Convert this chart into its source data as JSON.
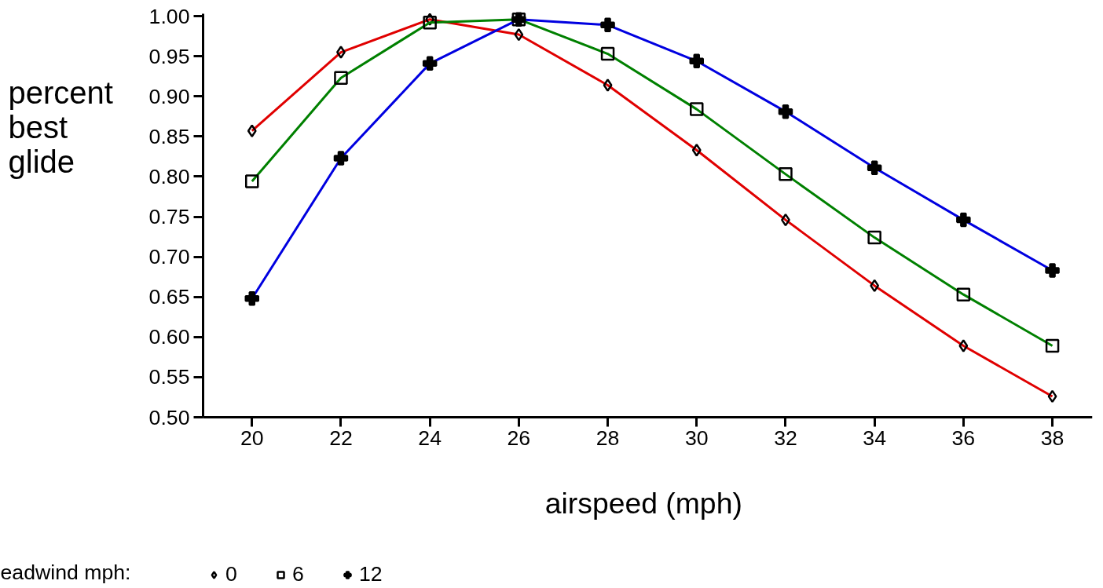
{
  "chart_data": {
    "type": "line",
    "xlabel": "airspeed  (mph)",
    "ylabel": "percent\nbest\nglide",
    "legend_title": "eadwind mph:",
    "x": [
      20,
      22,
      24,
      26,
      28,
      30,
      32,
      34,
      36,
      38
    ],
    "series": [
      {
        "name": "0",
        "color": "#e00000",
        "marker": "diamond",
        "values": [
          0.857,
          0.955,
          0.996,
          0.977,
          0.914,
          0.833,
          0.746,
          0.664,
          0.589,
          0.526
        ]
      },
      {
        "name": "6",
        "color": "#008000",
        "marker": "square",
        "values": [
          0.794,
          0.923,
          0.992,
          0.996,
          0.953,
          0.884,
          0.803,
          0.724,
          0.653,
          0.589
        ]
      },
      {
        "name": "12",
        "color": "#0000e0",
        "marker": "cross",
        "values": [
          0.648,
          0.823,
          0.941,
          0.996,
          0.989,
          0.944,
          0.881,
          0.811,
          0.746,
          0.683
        ]
      }
    ],
    "xlim": [
      18.9,
      38.9
    ],
    "xticks": [
      20,
      22,
      24,
      26,
      28,
      30,
      32,
      34,
      36,
      38
    ],
    "ylim": [
      0.5,
      1.003
    ],
    "yticks": [
      {
        "value": 0.5,
        "label": "0.50"
      },
      {
        "value": 0.55,
        "label": "0.55"
      },
      {
        "value": 0.6,
        "label": "0.60"
      },
      {
        "value": 0.65,
        "label": "0.65"
      },
      {
        "value": 0.7,
        "label": "0.70"
      },
      {
        "value": 0.75,
        "label": "0.75"
      },
      {
        "value": 0.8,
        "label": "0.80"
      },
      {
        "value": 0.85,
        "label": "0.85"
      },
      {
        "value": 0.9,
        "label": "0.90"
      },
      {
        "value": 0.95,
        "label": "0.95"
      },
      {
        "value": 1.0,
        "label": "1.00"
      }
    ],
    "grid": false,
    "legend": "bottom",
    "line_style": "solid"
  }
}
